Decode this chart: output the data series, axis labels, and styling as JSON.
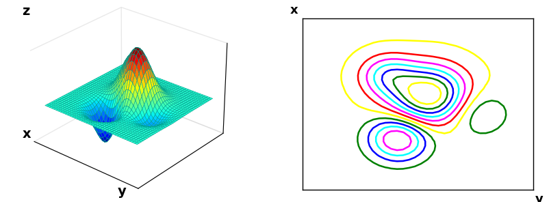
{
  "xlim": [
    -3,
    3
  ],
  "ylim": [
    -3,
    3
  ],
  "n_points": 40,
  "elev": 28,
  "azim": -50,
  "surface_cmap": "jet",
  "cycle_colors": [
    "red",
    "magenta",
    "cyan",
    "blue",
    "green",
    "yellow"
  ],
  "n_contour_levels": 12,
  "xlabel_3d": "x",
  "ylabel_3d": "y",
  "zlabel_3d": "z",
  "xlabel_contour": "x",
  "ylabel_contour": "y",
  "bg_color": "white",
  "edge_color": "#00a090",
  "linewidth_3d": 0.4
}
